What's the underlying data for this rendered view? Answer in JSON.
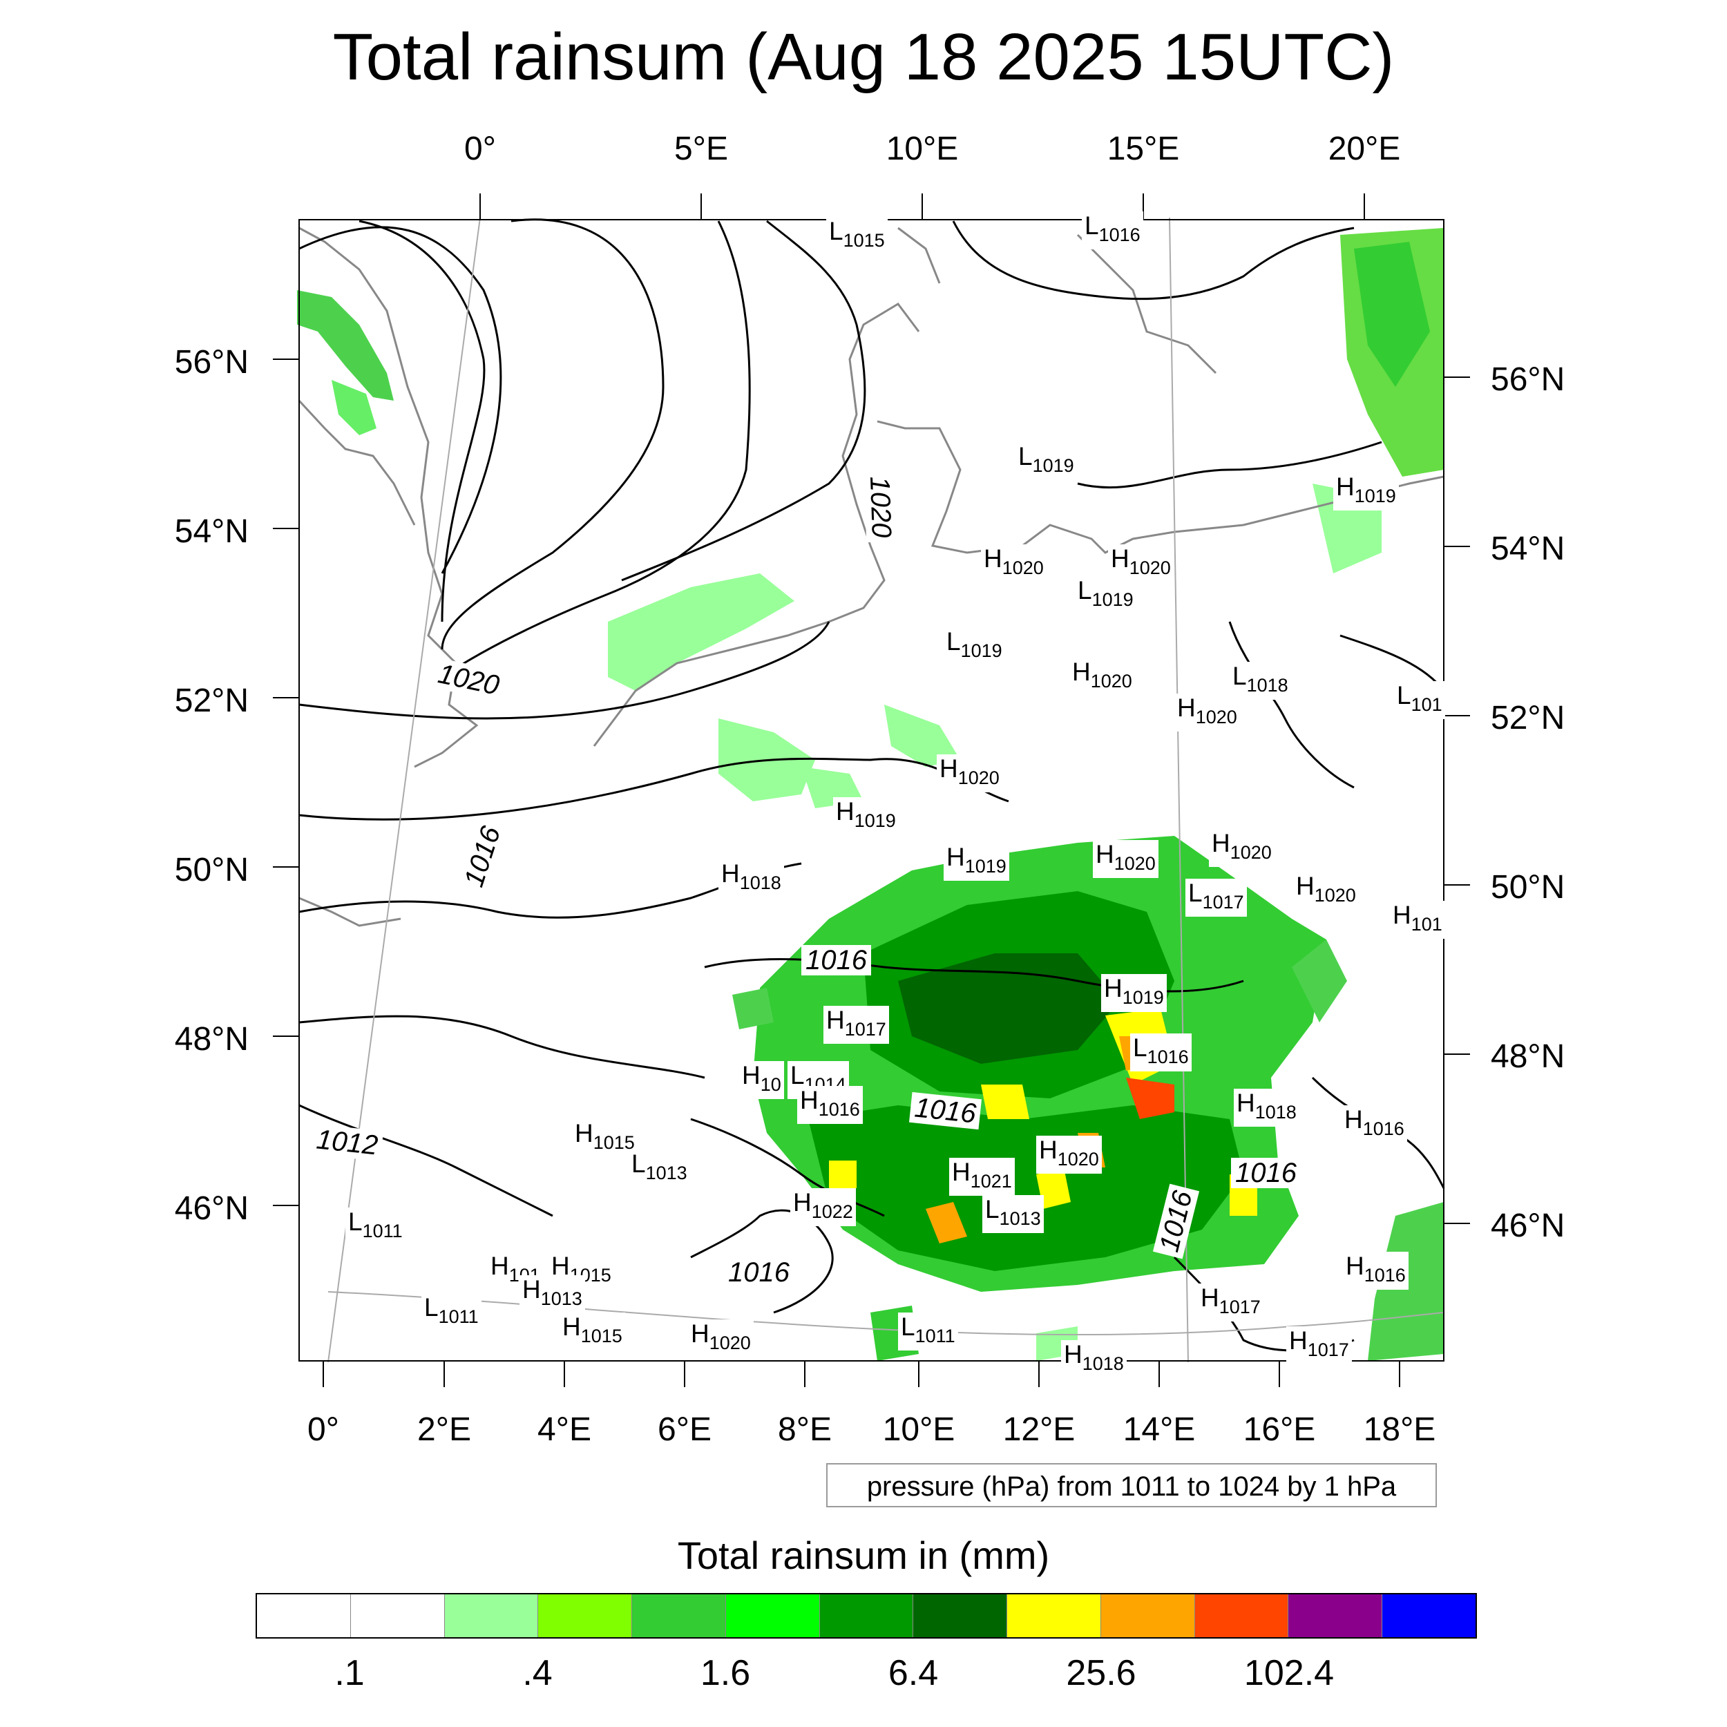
{
  "title": "Total rainsum (Aug 18 2025 15UTC)",
  "axes": {
    "top_lon": [
      "0°",
      "5°E",
      "10°E",
      "15°E",
      "20°E"
    ],
    "bottom_lon": [
      "0°",
      "2°E",
      "4°E",
      "6°E",
      "8°E",
      "10°E",
      "12°E",
      "14°E",
      "16°E",
      "18°E"
    ],
    "left_lat": [
      "56°N",
      "54°N",
      "52°N",
      "50°N",
      "48°N",
      "46°N"
    ],
    "right_lat": [
      "56°N",
      "54°N",
      "52°N",
      "50°N",
      "48°N",
      "46°N"
    ]
  },
  "pressure_centers": [
    {
      "t": "L",
      "v": "1015"
    },
    {
      "t": "L",
      "v": "1016"
    },
    {
      "t": "L",
      "v": "1019"
    },
    {
      "t": "H",
      "v": "1019"
    },
    {
      "t": "H",
      "v": "1020"
    },
    {
      "t": "H",
      "v": "1020"
    },
    {
      "t": "L",
      "v": "1019"
    },
    {
      "t": "L",
      "v": "1019"
    },
    {
      "t": "H",
      "v": "1020"
    },
    {
      "t": "L",
      "v": "1018"
    },
    {
      "t": "H",
      "v": "1020"
    },
    {
      "t": "L",
      "v": "101"
    },
    {
      "t": "H",
      "v": "1020"
    },
    {
      "t": "H",
      "v": "1019"
    },
    {
      "t": "H",
      "v": "1018"
    },
    {
      "t": "H",
      "v": "1019"
    },
    {
      "t": "H",
      "v": "1020"
    },
    {
      "t": "H",
      "v": "1020"
    },
    {
      "t": "L",
      "v": "1017"
    },
    {
      "t": "H",
      "v": "1020"
    },
    {
      "t": "H",
      "v": "101"
    },
    {
      "t": "H",
      "v": "1019"
    },
    {
      "t": "H",
      "v": "1017"
    },
    {
      "t": "L",
      "v": "1016"
    },
    {
      "t": "H",
      "v": "10"
    },
    {
      "t": "L",
      "v": "1014"
    },
    {
      "t": "H",
      "v": "1016"
    },
    {
      "t": "H",
      "v": "1018"
    },
    {
      "t": "H",
      "v": "1016"
    },
    {
      "t": "H",
      "v": "1015"
    },
    {
      "t": "L",
      "v": "1013"
    },
    {
      "t": "H",
      "v": "1020"
    },
    {
      "t": "H",
      "v": "1021"
    },
    {
      "t": "H",
      "v": "1022"
    },
    {
      "t": "L",
      "v": "1013"
    },
    {
      "t": "L",
      "v": "1011"
    },
    {
      "t": "H",
      "v": "101"
    },
    {
      "t": "H",
      "v": "1015"
    },
    {
      "t": "H",
      "v": "1013"
    },
    {
      "t": "L",
      "v": "1011"
    },
    {
      "t": "H",
      "v": "1015"
    },
    {
      "t": "H",
      "v": "1020"
    },
    {
      "t": "L",
      "v": "1011"
    },
    {
      "t": "H",
      "v": "1016"
    },
    {
      "t": "H",
      "v": "1017"
    },
    {
      "t": "H",
      "v": "1017"
    },
    {
      "t": "H",
      "v": "1018"
    }
  ],
  "isobar_labels": [
    "1020",
    "1020",
    "1016",
    "1016",
    "1016",
    "1012",
    "1016",
    "1016",
    "1016"
  ],
  "contour_info": "pressure (hPa) from 1011 to 1024 by 1 hPa",
  "colorbar": {
    "title": "Total rainsum in (mm)",
    "colors": [
      "#ffffff",
      "#ffffff",
      "#99ff99",
      "#80ff00",
      "#33cc33",
      "#00ff00",
      "#009900",
      "#006600",
      "#ffff00",
      "#ffa500",
      "#ff4500",
      "#8b008b",
      "#0000ff"
    ],
    "labels": [
      ".1",
      ".4",
      "1.6",
      "6.4",
      "25.6",
      "102.4"
    ],
    "label_boundaries": [
      1,
      3,
      5,
      7,
      9,
      11
    ]
  }
}
